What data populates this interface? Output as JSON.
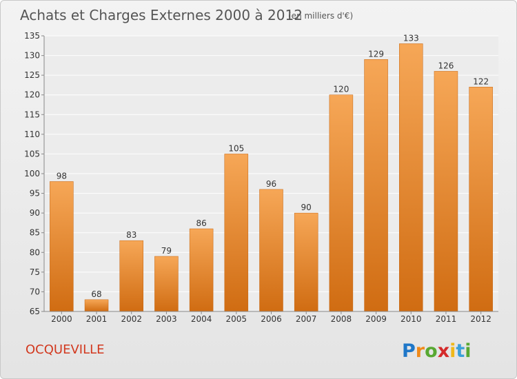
{
  "chart_data": {
    "type": "bar",
    "title": "Achats et Charges Externes 2000 à 2012",
    "subtitle": "(en milliers d'€)",
    "categories": [
      "2000",
      "2001",
      "2002",
      "2003",
      "2004",
      "2005",
      "2006",
      "2007",
      "2008",
      "2009",
      "2010",
      "2011",
      "2012"
    ],
    "values": [
      98,
      68,
      83,
      79,
      86,
      105,
      96,
      90,
      120,
      129,
      133,
      126,
      122
    ],
    "ylim": [
      65,
      135
    ],
    "yticks": [
      65,
      70,
      75,
      80,
      85,
      90,
      95,
      100,
      105,
      110,
      115,
      120,
      125,
      130,
      135
    ],
    "grid": true,
    "legend": "none",
    "colors": {
      "bar_light": "#f6a757",
      "bar_dark": "#d06c12"
    }
  },
  "commune": "OCQUEVILLE",
  "logo": {
    "letters": [
      "P",
      "r",
      "o",
      "x",
      "i",
      "t",
      "i"
    ],
    "colors": [
      "#1f77c8",
      "#f08a1a",
      "#58a832",
      "#d42a2a",
      "#f0b81a",
      "#3aa0d8",
      "#58a832"
    ]
  }
}
